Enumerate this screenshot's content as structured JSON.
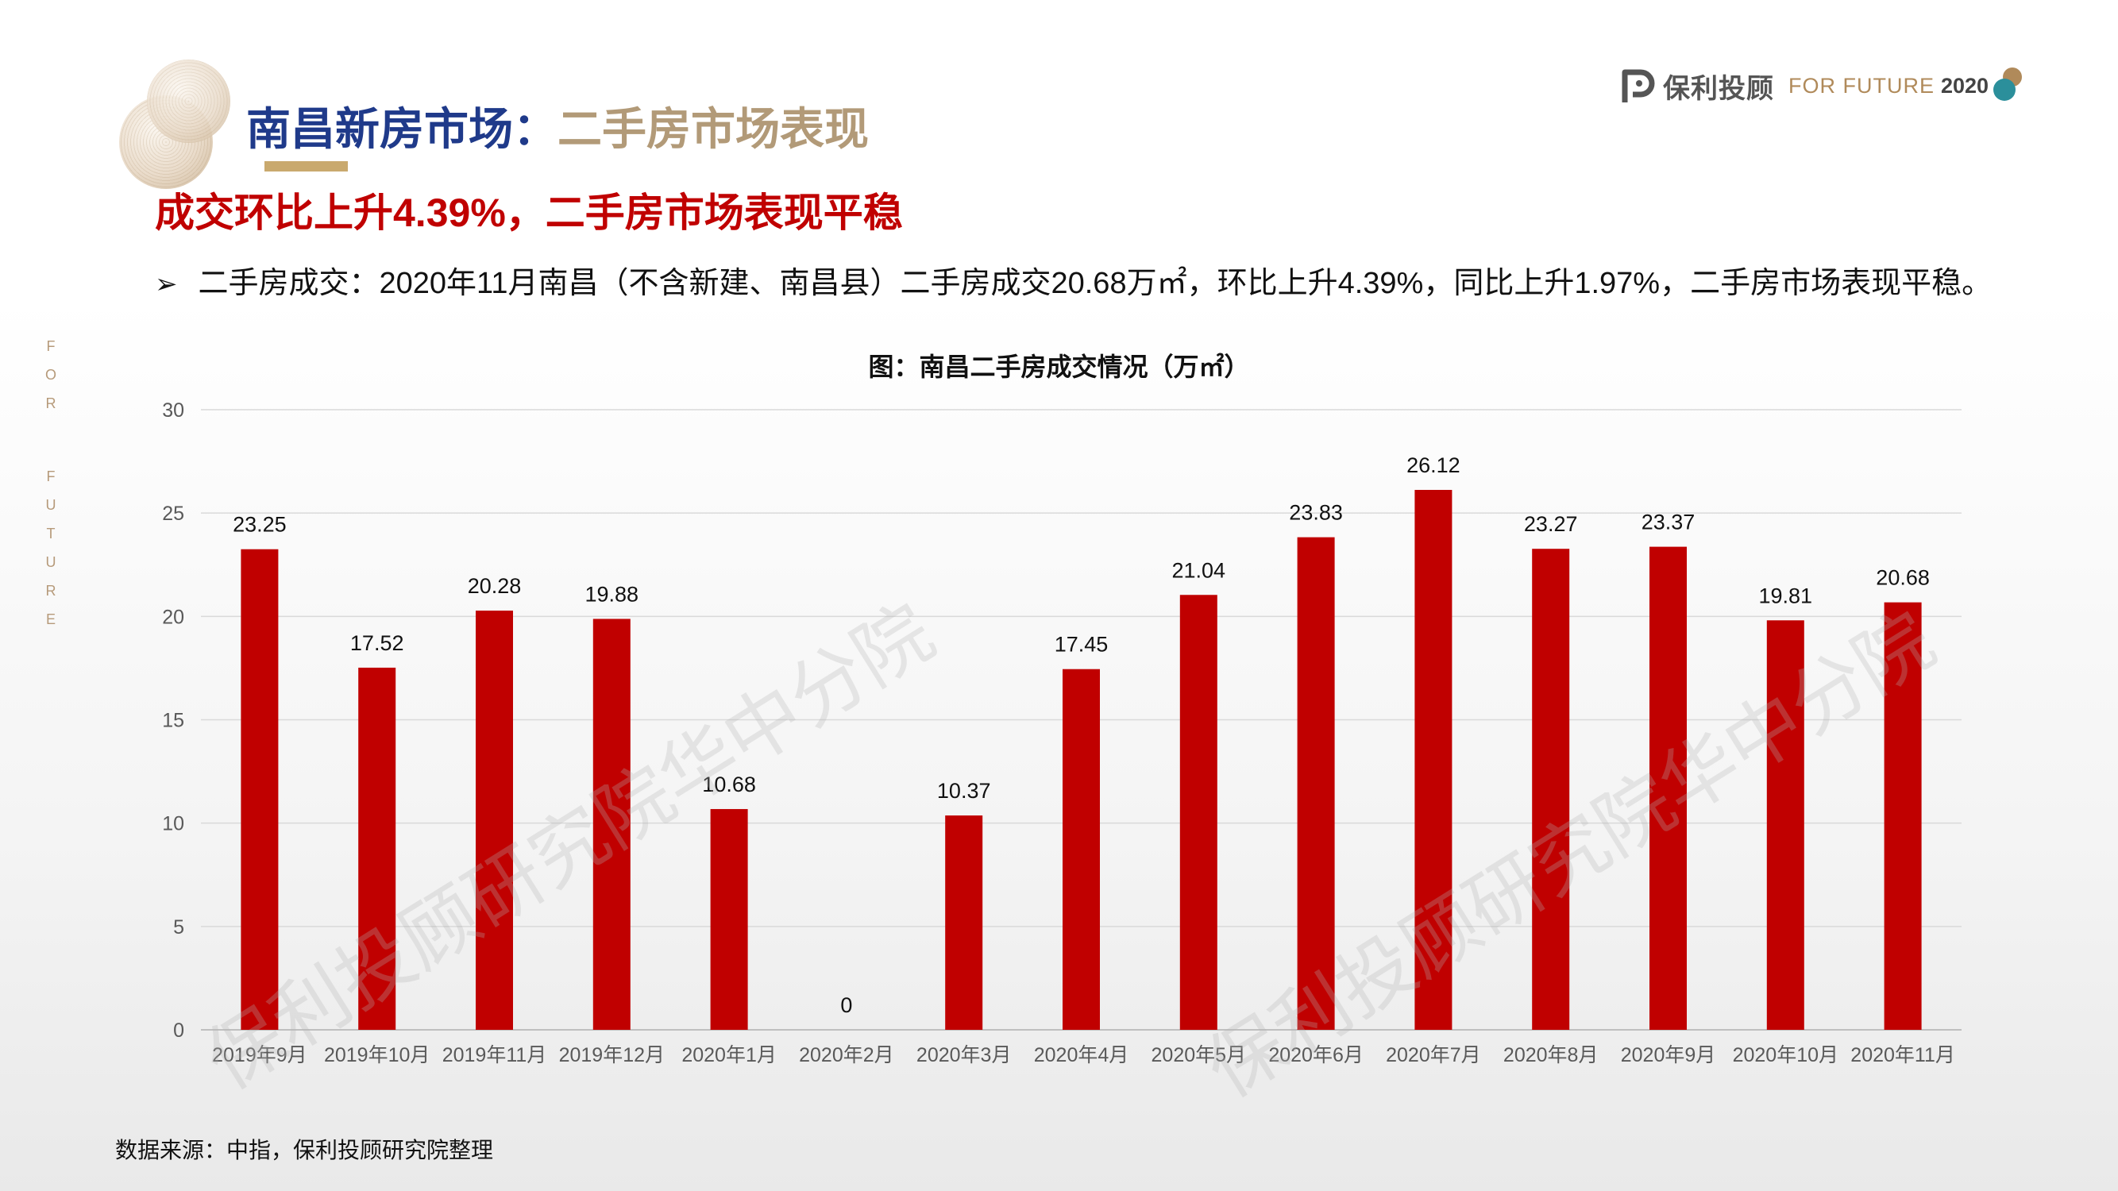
{
  "header": {
    "title_part1": "南昌新房市场：",
    "title_part2": "二手房市场表现"
  },
  "logo": {
    "brand": "保利",
    "brand2": "投顾",
    "tagline": "FOR FUTURE",
    "year": "2020"
  },
  "headline": "成交环比上升4.39%，二手房市场表现平稳",
  "bullet": {
    "arrow": "➢",
    "text": "二手房成交：2020年11月南昌（不含新建、南昌县）二手房成交20.68万㎡，环比上升4.39%，同比上升1.97%，二手房市场表现平稳。"
  },
  "side_text": [
    "F",
    "O",
    "R",
    "F",
    "U",
    "T",
    "U",
    "R",
    "E"
  ],
  "watermark": [
    "保利投顾研究院华中分院",
    "保利投顾研究院华中分院"
  ],
  "source": "数据来源：中指，保利投顾研究院整理",
  "colors": {
    "bar": "#c00000",
    "headline": "#c00000",
    "title_blue": "#1f3a8a",
    "title_gold": "#b29a78"
  },
  "chart_data": {
    "type": "bar",
    "title": "图：南昌二手房成交情况（万㎡）",
    "categories": [
      "2019年9月",
      "2019年10月",
      "2019年11月",
      "2019年12月",
      "2020年1月",
      "2020年2月",
      "2020年3月",
      "2020年4月",
      "2020年5月",
      "2020年6月",
      "2020年7月",
      "2020年8月",
      "2020年9月",
      "2020年10月",
      "2020年11月"
    ],
    "values": [
      23.25,
      17.52,
      20.28,
      19.88,
      10.68,
      0,
      10.37,
      17.45,
      21.04,
      23.83,
      26.12,
      23.27,
      23.37,
      19.81,
      20.68
    ],
    "value_labels": [
      "23.25",
      "17.52",
      "20.28",
      "19.88",
      "10.68",
      "0",
      "10.37",
      "17.45",
      "21.04",
      "23.83",
      "26.12",
      "23.27",
      "23.37",
      "19.81",
      "20.68"
    ],
    "ylim": [
      0,
      30
    ],
    "yticks": [
      "0",
      "5",
      "10",
      "15",
      "20",
      "25",
      "30"
    ],
    "grid": true,
    "xlabel": "",
    "ylabel": ""
  }
}
